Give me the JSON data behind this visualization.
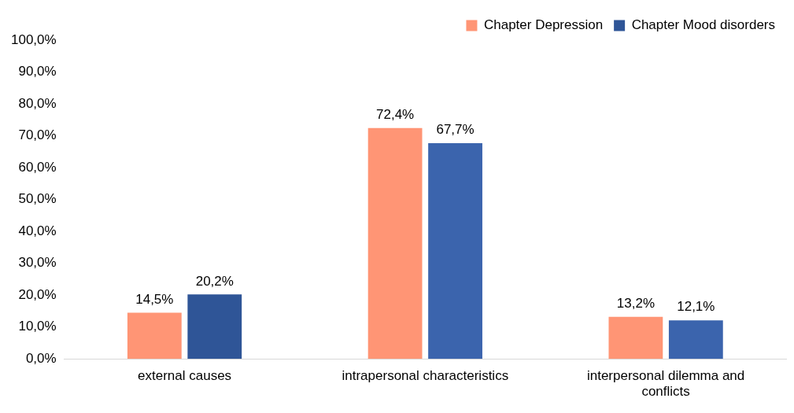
{
  "chart_data": {
    "type": "bar",
    "categories": [
      "external causes",
      "intrapersonal characteristics",
      "interpersonal dilemma and conflicts"
    ],
    "series": [
      {
        "name": "Chapter Depression",
        "color": "#ff9575",
        "values": [
          14.5,
          72.4,
          13.2
        ],
        "value_labels": [
          "14,5%",
          "72,4%",
          "13,2%"
        ]
      },
      {
        "name": "Chapter Mood disorders",
        "color": "#3b64ad",
        "colors": [
          "#2f5597",
          "#3b64ad",
          "#3b64ad"
        ],
        "values": [
          20.2,
          67.7,
          12.1
        ],
        "value_labels": [
          "20,2%",
          "67,7%",
          "12,1%"
        ]
      }
    ],
    "ylim": [
      0,
      100
    ],
    "yticks": [
      {
        "value": 0,
        "label": "0,0%"
      },
      {
        "value": 10,
        "label": "10,0%"
      },
      {
        "value": 20,
        "label": "20,0%"
      },
      {
        "value": 30,
        "label": "30,0%"
      },
      {
        "value": 40,
        "label": "40,0%"
      },
      {
        "value": 50,
        "label": "50,0%"
      },
      {
        "value": 60,
        "label": "60,0%"
      },
      {
        "value": 70,
        "label": "70,0%"
      },
      {
        "value": 80,
        "label": "80,0%"
      },
      {
        "value": 90,
        "label": "90,0%"
      },
      {
        "value": 100,
        "label": "100,0%"
      }
    ],
    "grid": false,
    "legend": "top right"
  }
}
